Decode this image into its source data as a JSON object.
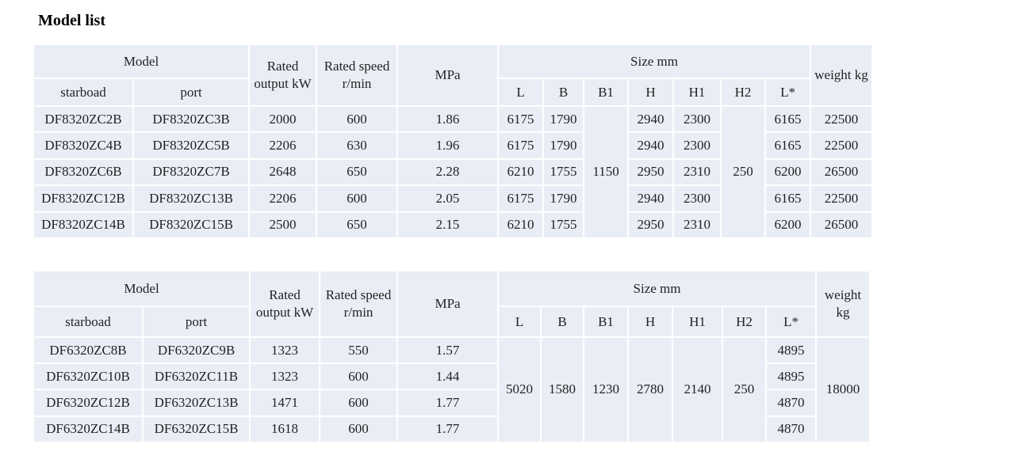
{
  "title": "Model list",
  "tables": [
    {
      "header": {
        "model": "Model",
        "starboard": "starboad",
        "port": "port",
        "rated_output": "Rated output kW",
        "rated_speed": "Rated speed r/min",
        "mpa": "MPa",
        "size": "Size mm",
        "dims": [
          "L",
          "B",
          "B1",
          "H",
          "H1",
          "H2",
          "L*"
        ],
        "weight": "weight kg"
      },
      "rows": [
        [
          "DF8320ZC2B",
          "DF8320ZC3B",
          "2000",
          "600",
          "1.86",
          "6175",
          "1790",
          "2940",
          "2300",
          "6165",
          "22500"
        ],
        [
          "DF8320ZC4B",
          "DF8320ZC5B",
          "2206",
          "630",
          "1.96",
          "6175",
          "1790",
          "2940",
          "2300",
          "6165",
          "22500"
        ],
        [
          "DF8320ZC6B",
          "DF8320ZC7B",
          "2648",
          "650",
          "2.28",
          "6210",
          "1755",
          "2950",
          "2310",
          "6200",
          "26500"
        ],
        [
          "DF8320ZC12B",
          "DF8320ZC13B",
          "2206",
          "600",
          "2.05",
          "6175",
          "1790",
          "2940",
          "2300",
          "6165",
          "22500"
        ],
        [
          "DF8320ZC14B",
          "DF8320ZC15B",
          "2500",
          "650",
          "2.15",
          "6210",
          "1755",
          "2950",
          "2310",
          "6200",
          "26500"
        ]
      ],
      "merged": {
        "B1": "1150",
        "H2": "250"
      }
    },
    {
      "header": {
        "model": "Model",
        "starboard": "starboad",
        "port": "port",
        "rated_output": "Rated output kW",
        "rated_speed": "Rated speed r/min",
        "mpa": "MPa",
        "size": "Size mm",
        "dims": [
          "L",
          "B",
          "B1",
          "H",
          "H1",
          "H2",
          "L*"
        ],
        "weight": "weight kg"
      },
      "rows": [
        [
          "DF6320ZC8B",
          "DF6320ZC9B",
          "1323",
          "550",
          "1.57",
          "4895"
        ],
        [
          "DF6320ZC10B",
          "DF6320ZC11B",
          "1323",
          "600",
          "1.44",
          "4895"
        ],
        [
          "DF6320ZC12B",
          "DF6320ZC13B",
          "1471",
          "600",
          "1.77",
          "4870"
        ],
        [
          "DF6320ZC14B",
          "DF6320ZC15B",
          "1618",
          "600",
          "1.77",
          "4870"
        ]
      ],
      "merged": {
        "L": "5020",
        "B": "1580",
        "B1": "1230",
        "H": "2780",
        "H1": "2140",
        "H2": "250",
        "weight": "18000"
      }
    }
  ]
}
